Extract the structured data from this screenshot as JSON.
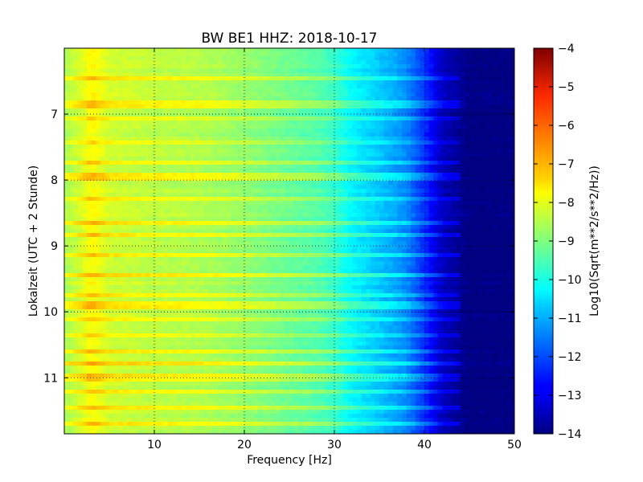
{
  "chart_data": {
    "type": "heatmap",
    "title": "BW BE1 HHZ: 2018-10-17",
    "xlabel": "Frequency [Hz]",
    "ylabel": "Lokalzeit (UTC + 2 Stunde)",
    "xlim": [
      0,
      50
    ],
    "ylim": [
      6.0,
      11.85
    ],
    "y_inverted": true,
    "grid": true,
    "x_ticks": [
      10,
      20,
      30,
      40,
      50
    ],
    "y_ticks": [
      7,
      8,
      9,
      10,
      11
    ],
    "colorbar": {
      "label": "Log10(Sqrt(m**2/s**2/Hz))",
      "range": [
        -14,
        -4
      ],
      "ticks": [
        -4,
        -5,
        -6,
        -7,
        -8,
        -9,
        -10,
        -11,
        -12,
        -13,
        -14
      ],
      "colormap": "jet"
    },
    "spectrum_profile": {
      "frequency_hz": [
        0,
        2,
        3,
        5,
        10,
        15,
        20,
        25,
        28,
        30,
        32,
        35,
        38,
        40,
        42,
        45,
        50
      ],
      "log_value": [
        -8.6,
        -8.1,
        -7.7,
        -8.2,
        -8.4,
        -8.5,
        -8.8,
        -9.2,
        -9.4,
        -9.7,
        -10.3,
        -10.8,
        -11.4,
        -12.3,
        -13.4,
        -14,
        -14
      ]
    },
    "bright_bands_hours": [
      6.45,
      6.85,
      7.05,
      7.45,
      7.75,
      7.95,
      8.3,
      8.65,
      8.85,
      9.15,
      9.45,
      9.75,
      9.9,
      10.1,
      10.35,
      10.6,
      10.8,
      11.0,
      11.2,
      11.45,
      11.7
    ]
  }
}
